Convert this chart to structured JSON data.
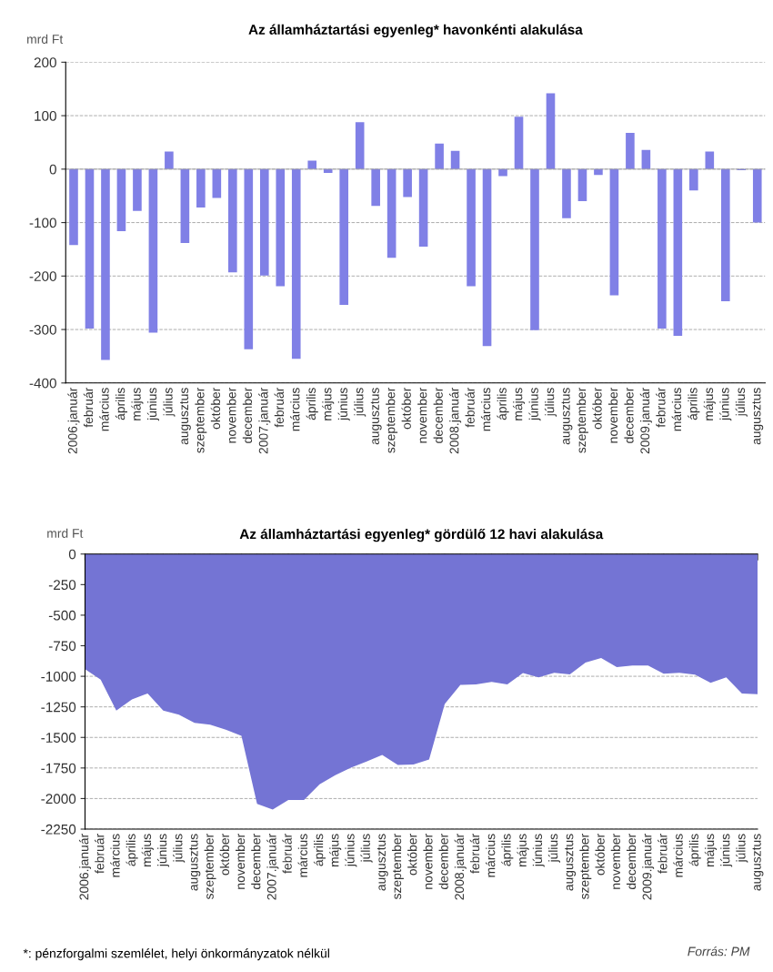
{
  "chart_data": [
    {
      "type": "bar",
      "title": "Az államháztartási egyenleg* havonkénti alakulása",
      "ylabel": "mrd Ft",
      "categories": [
        "2006.január",
        "február",
        "március",
        "április",
        "május",
        "június",
        "július",
        "augusztus",
        "szeptember",
        "október",
        "november",
        "december",
        "2007.január",
        "február",
        "március",
        "április",
        "május",
        "június",
        "július",
        "augusztus",
        "szeptember",
        "október",
        "november",
        "december",
        "2008.január",
        "február",
        "március",
        "április",
        "május",
        "június",
        "július",
        "augusztus",
        "szeptember",
        "október",
        "november",
        "december",
        "2009.január",
        "február",
        "március",
        "április",
        "május",
        "június",
        "július",
        "augusztus"
      ],
      "series": [
        {
          "color": "#8080e6",
          "values": [
            -142,
            -298,
            -357,
            -116,
            -78,
            -306,
            33,
            -138,
            -72,
            -54,
            -193,
            -337,
            -199,
            -219,
            -355,
            16,
            -7,
            -254,
            88,
            -69,
            -166,
            -52,
            -145,
            48,
            34,
            -219,
            -331,
            -13,
            98,
            -301,
            142,
            -92,
            -60,
            -11,
            -236,
            68,
            36,
            -298,
            -312,
            -40,
            33,
            -247,
            -2,
            -100
          ]
        }
      ],
      "ylim": [
        -400,
        200
      ],
      "yticks": [
        -400,
        -300,
        -200,
        -100,
        0,
        100,
        200
      ],
      "grid": "y"
    },
    {
      "type": "area",
      "title": "Az államháztartási egyenleg* gördülő 12 havi alakulása",
      "ylabel": "mrd Ft",
      "categories": [
        "2006.január",
        "február",
        "március",
        "április",
        "május",
        "június",
        "július",
        "augusztus",
        "szeptember",
        "október",
        "november",
        "december",
        "2007.január",
        "február",
        "március",
        "április",
        "május",
        "június",
        "július",
        "augusztus",
        "szeptember",
        "október",
        "november",
        "december",
        "2008.január",
        "február",
        "március",
        "április",
        "május",
        "június",
        "július",
        "augusztus",
        "szeptember",
        "október",
        "november",
        "december",
        "2009.január",
        "február",
        "március",
        "április",
        "május",
        "június",
        "július",
        "augusztus"
      ],
      "series": [
        {
          "color": "#7474d4",
          "values": [
            -942,
            -1028,
            -1281,
            -1189,
            -1140,
            -1281,
            -1313,
            -1380,
            -1395,
            -1437,
            -1487,
            -2044,
            -2089,
            -2012,
            -2012,
            -1883,
            -1809,
            -1747,
            -1697,
            -1643,
            -1725,
            -1722,
            -1680,
            -1227,
            -1070,
            -1066,
            -1046,
            -1066,
            -974,
            -1009,
            -971,
            -984,
            -887,
            -850,
            -924,
            -912,
            -912,
            -979,
            -971,
            -986,
            -1053,
            -1009,
            -1140,
            -1147
          ]
        }
      ],
      "ylim": [
        -2250,
        0
      ],
      "yticks": [
        -2250,
        -2000,
        -1750,
        -1500,
        -1250,
        -1000,
        -750,
        -500,
        -250,
        0
      ],
      "grid": "y",
      "annotations": [
        "*: pénzforgalmi szemlélet, helyi önkormányzatok nélkül",
        "Forrás: PM"
      ]
    }
  ]
}
